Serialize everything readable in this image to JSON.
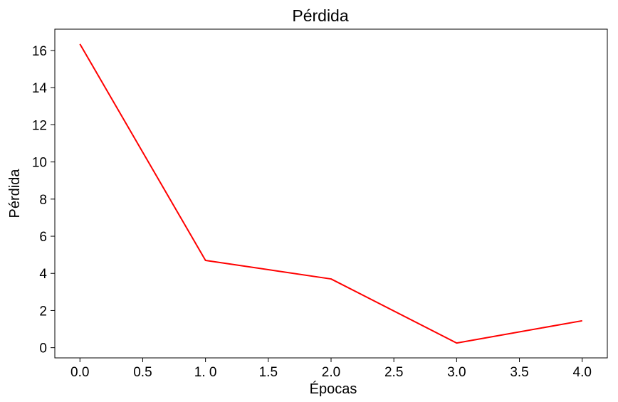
{
  "chart_data": {
    "type": "line",
    "title": "Pérdida",
    "xlabel": "Épocas",
    "ylabel": "Pérdida",
    "xlim": [
      -0.2,
      4.2
    ],
    "ylim": [
      -0.55,
      17.15
    ],
    "xticks": [
      0.0,
      0.5,
      1.0,
      1.5,
      2.0,
      2.5,
      3.0,
      3.5,
      4.0
    ],
    "xtick_labels": [
      "0.0",
      "0.5",
      "1. 0",
      "1.5",
      "2.0",
      "2.5",
      "3.0",
      "3.5",
      "4.0"
    ],
    "yticks": [
      0,
      2,
      4,
      6,
      8,
      10,
      12,
      14,
      16
    ],
    "ytick_labels": [
      "0",
      "2",
      "4",
      "6",
      "8",
      "10",
      "12",
      "14",
      "16"
    ],
    "grid": false,
    "series": [
      {
        "color": "#ff0000",
        "x": [
          0,
          1,
          2,
          3,
          4
        ],
        "y": [
          16.35,
          4.7,
          3.7,
          0.25,
          1.45
        ]
      }
    ]
  }
}
